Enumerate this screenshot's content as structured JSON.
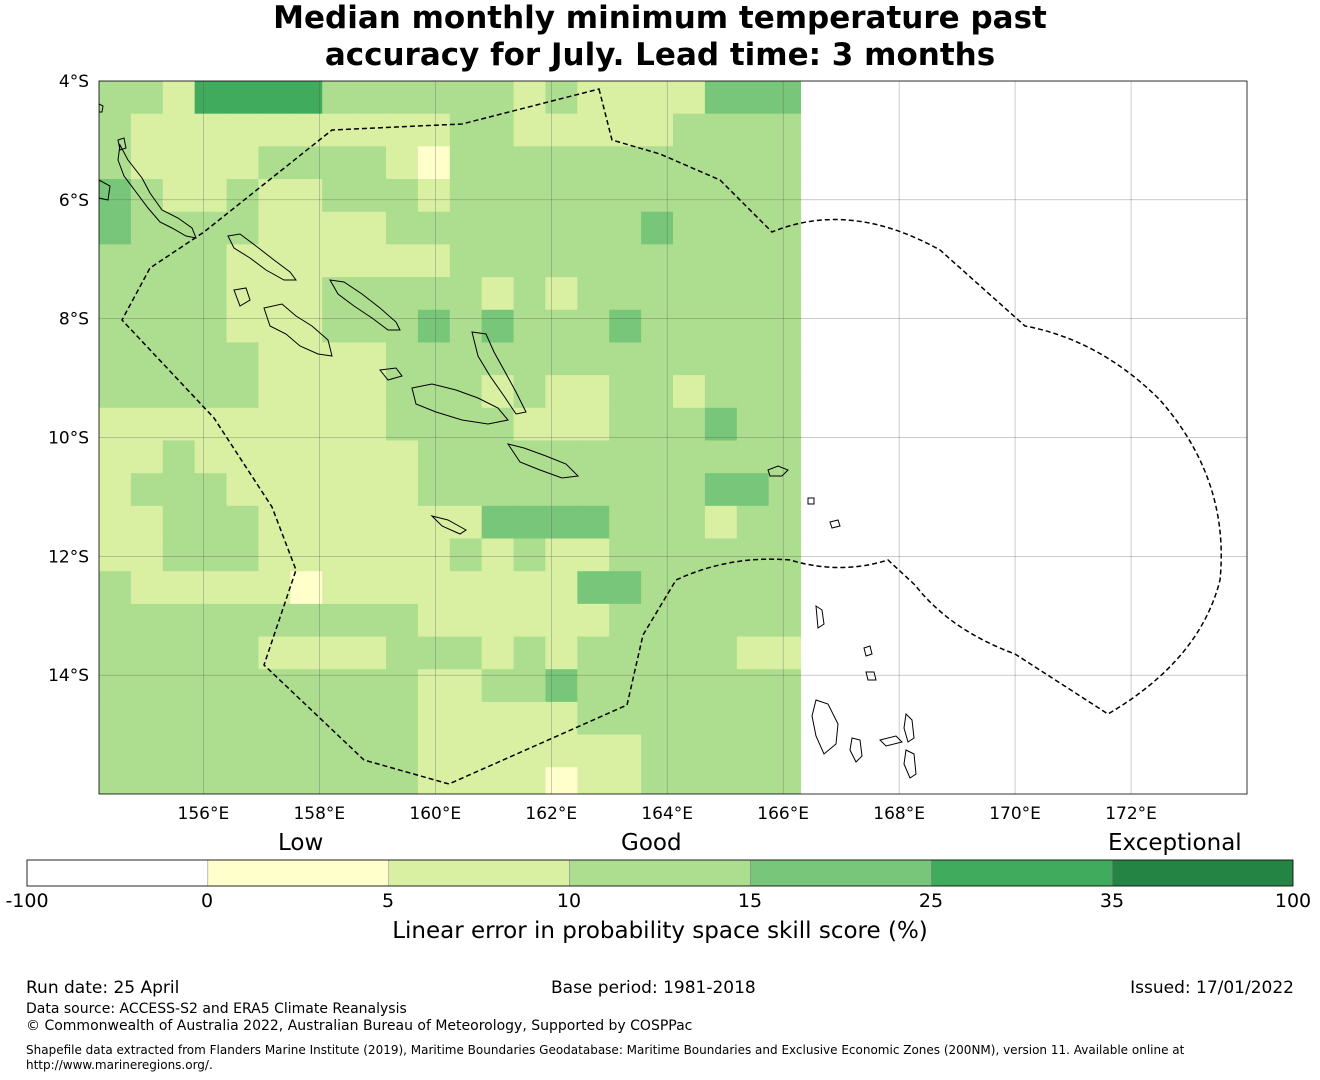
{
  "title_line1": "Median monthly minimum temperature past",
  "title_line2": "accuracy for July. Lead time: 3 months",
  "map": {
    "lat_labels": [
      "4°S",
      "6°S",
      "8°S",
      "10°S",
      "12°S",
      "14°S"
    ],
    "lon_labels": [
      "156°E",
      "158°E",
      "160°E",
      "162°E",
      "164°E",
      "166°E",
      "168°E",
      "170°E",
      "172°E"
    ],
    "extent": {
      "lon_min": 154.2,
      "lon_max": 174.0,
      "lat_min": -16.0,
      "lat_max": -4.0
    },
    "grid_rows_lat_top": -4.0,
    "grid_cell_deg": 0.55,
    "grid": [
      "3325555333333232222444",
      "3222222222233222223333",
      "3222233332133333333333",
      "4322322333233333333333",
      "4333322223333333343333",
      "3333222222233333333333",
      "3333222333332323333333",
      "3333222333434333433333",
      "3333322223333333333333",
      "3333322223332322332333",
      "2222222223333222333433",
      "2232222222333333333333",
      "2333222222333333333443",
      "2233322222224444333233",
      "2233322222232322333333",
      "3222221222222224433333",
      "3333333333222222333333",
      "3333322223332323333322",
      "3333333333223343333333",
      "3333333333222223333333",
      "3333333333222222233333",
      "3333333333222212233333"
    ],
    "colors": {
      "c0": "#ffffff",
      "c1": "#ffffcc",
      "c2": "#d9f0a3",
      "c3": "#addd8e",
      "c4": "#78c679",
      "c5": "#41ab5d",
      "c6": "#238443"
    }
  },
  "legend": {
    "categories": [
      "Low",
      "Good",
      "Exceptional"
    ],
    "ticks": [
      "-100",
      "0",
      "5",
      "10",
      "15",
      "25",
      "35",
      "100"
    ],
    "colors": [
      "#ffffff",
      "#ffffcc",
      "#d9f0a3",
      "#addd8e",
      "#78c679",
      "#41ab5d",
      "#238443"
    ],
    "title": "Linear error in probability space skill score (%)"
  },
  "footer": {
    "run_date": "Run date: 25 April",
    "base_period": "Base period: 1981-2018",
    "issued": "Issued: 17/01/2022",
    "data_source": "Data source: ACCESS-S2 and ERA5 Climate Reanalysis",
    "copyright": "© Commonwealth of Australia 2022, Australian Bureau of Meteorology, Supported by COSPPac",
    "shapefile_1": "Shapefile data extracted from Flanders Marine Institute (2019), Maritime Boundaries Geodatabase: Maritime Boundaries and Exclusive Economic Zones (200NM), version 11. Available online at",
    "shapefile_2": "http://www.marineregions.org/."
  }
}
